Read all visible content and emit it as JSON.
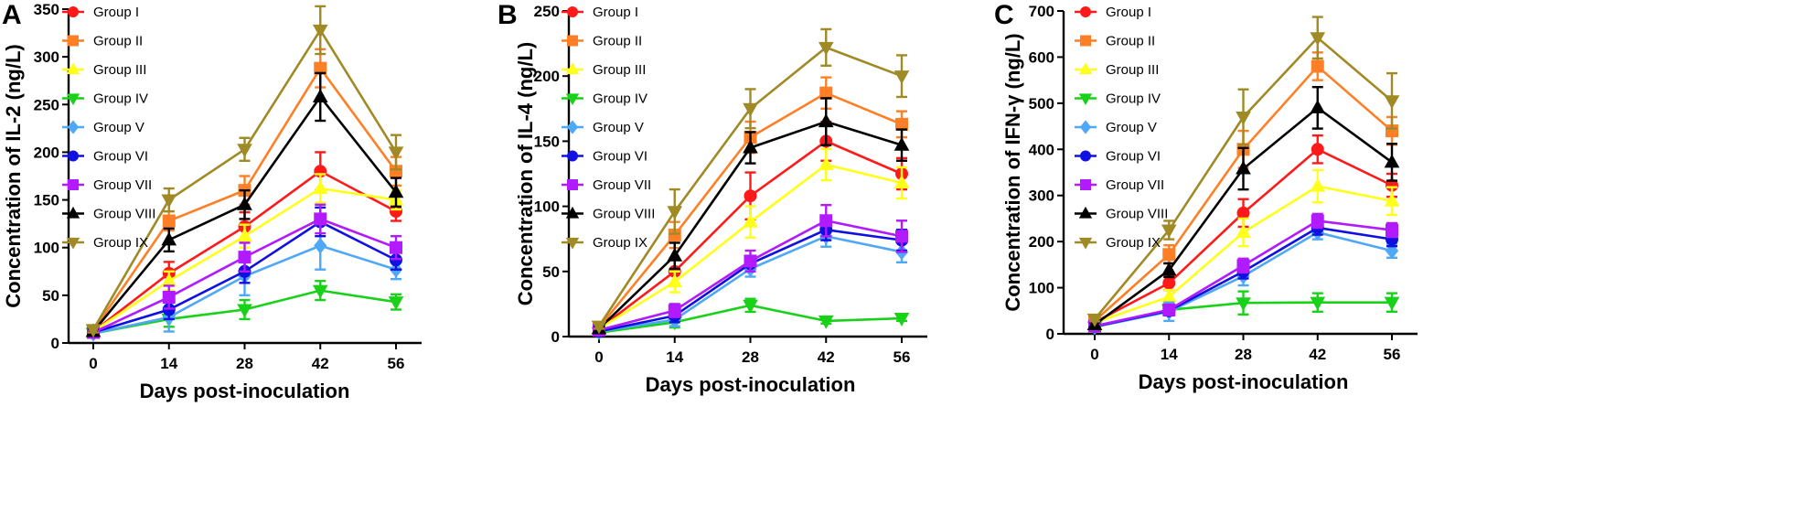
{
  "chart_data": [
    {
      "type": "line",
      "panel": "A",
      "xlabel": "Days post-inoculation",
      "ylabel": "Concentration of IL-2 (ng/L)",
      "x": [
        0,
        14,
        28,
        42,
        56
      ],
      "xticks": [
        0,
        14,
        28,
        42,
        56
      ],
      "ylim": [
        0,
        350
      ],
      "yticks": [
        0,
        50,
        100,
        150,
        200,
        250,
        300,
        350
      ],
      "series": [
        {
          "name": "Group I",
          "color": "#ff1a1a",
          "marker": "circle",
          "values": [
            12,
            73,
            122,
            180,
            138
          ],
          "errors": [
            3,
            12,
            15,
            20,
            10
          ]
        },
        {
          "name": "Group II",
          "color": "#ff7f27",
          "marker": "square",
          "values": [
            13,
            128,
            160,
            288,
            180
          ],
          "errors": [
            3,
            10,
            15,
            20,
            15
          ]
        },
        {
          "name": "Group III",
          "color": "#ffff1a",
          "marker": "triangle-up",
          "values": [
            12,
            65,
            112,
            162,
            150
          ],
          "errors": [
            3,
            10,
            12,
            15,
            10
          ]
        },
        {
          "name": "Group IV",
          "color": "#1ad11a",
          "marker": "triangle-down",
          "values": [
            10,
            25,
            35,
            55,
            43
          ],
          "errors": [
            3,
            8,
            10,
            10,
            8
          ]
        },
        {
          "name": "Group V",
          "color": "#4fa8f5",
          "marker": "diamond",
          "values": [
            10,
            27,
            70,
            102,
            77
          ],
          "errors": [
            3,
            15,
            20,
            25,
            10
          ]
        },
        {
          "name": "Group VI",
          "color": "#1010e0",
          "marker": "circle",
          "values": [
            11,
            35,
            75,
            127,
            87
          ],
          "errors": [
            3,
            10,
            12,
            15,
            10
          ]
        },
        {
          "name": "Group VII",
          "color": "#b21aff",
          "marker": "square",
          "values": [
            11,
            48,
            90,
            130,
            100
          ],
          "errors": [
            3,
            12,
            15,
            15,
            12
          ]
        },
        {
          "name": "Group VIII",
          "color": "#000000",
          "marker": "triangle-up",
          "values": [
            12,
            108,
            145,
            258,
            158
          ],
          "errors": [
            3,
            12,
            15,
            25,
            15
          ]
        },
        {
          "name": "Group IX",
          "color": "#a08a26",
          "marker": "triangle-down",
          "values": [
            14,
            150,
            203,
            328,
            200
          ],
          "errors": [
            3,
            12,
            12,
            25,
            18
          ]
        }
      ]
    },
    {
      "type": "line",
      "panel": "B",
      "xlabel": "Days post-inoculation",
      "ylabel": "Concentration of IL-4 (ng/L)",
      "x": [
        0,
        14,
        28,
        42,
        56
      ],
      "xticks": [
        0,
        14,
        28,
        42,
        56
      ],
      "ylim": [
        0,
        250
      ],
      "yticks": [
        0,
        50,
        100,
        150,
        200,
        250
      ],
      "series": [
        {
          "name": "Group I",
          "color": "#ff1a1a",
          "marker": "circle",
          "values": [
            6,
            50,
            108,
            150,
            125
          ],
          "errors": [
            2,
            10,
            18,
            15,
            12
          ]
        },
        {
          "name": "Group II",
          "color": "#ff7f27",
          "marker": "square",
          "values": [
            7,
            78,
            153,
            187,
            163
          ],
          "errors": [
            2,
            10,
            12,
            12,
            10
          ]
        },
        {
          "name": "Group III",
          "color": "#ffff1a",
          "marker": "triangle-up",
          "values": [
            6,
            42,
            88,
            132,
            118
          ],
          "errors": [
            2,
            8,
            12,
            12,
            12
          ]
        },
        {
          "name": "Group IV",
          "color": "#1ad11a",
          "marker": "triangle-down",
          "values": [
            3,
            11,
            24,
            12,
            14
          ],
          "errors": [
            1,
            4,
            5,
            2,
            2
          ]
        },
        {
          "name": "Group V",
          "color": "#4fa8f5",
          "marker": "diamond",
          "values": [
            4,
            13,
            52,
            77,
            65
          ],
          "errors": [
            1,
            5,
            6,
            8,
            8
          ]
        },
        {
          "name": "Group VI",
          "color": "#1010e0",
          "marker": "circle",
          "values": [
            4,
            16,
            56,
            82,
            74
          ],
          "errors": [
            1,
            5,
            6,
            8,
            8
          ]
        },
        {
          "name": "Group VII",
          "color": "#b21aff",
          "marker": "square",
          "values": [
            5,
            20,
            58,
            89,
            77
          ],
          "errors": [
            1,
            5,
            8,
            12,
            12
          ]
        },
        {
          "name": "Group VIII",
          "color": "#000000",
          "marker": "triangle-up",
          "values": [
            6,
            62,
            145,
            165,
            147
          ],
          "errors": [
            2,
            10,
            12,
            18,
            12
          ]
        },
        {
          "name": "Group IX",
          "color": "#a08a26",
          "marker": "triangle-down",
          "values": [
            8,
            96,
            175,
            222,
            200
          ],
          "errors": [
            2,
            17,
            15,
            14,
            16
          ]
        }
      ]
    },
    {
      "type": "line",
      "panel": "C",
      "xlabel": "Days post-inoculation",
      "ylabel": "Concentration of IFN-γ  (ng/L)",
      "x": [
        0,
        14,
        28,
        42,
        56
      ],
      "xticks": [
        0,
        14,
        28,
        42,
        56
      ],
      "ylim": [
        0,
        700
      ],
      "yticks": [
        0,
        100,
        200,
        300,
        400,
        500,
        600,
        700
      ],
      "series": [
        {
          "name": "Group I",
          "color": "#ff1a1a",
          "marker": "circle",
          "values": [
            25,
            110,
            262,
            400,
            322
          ],
          "errors": [
            5,
            15,
            30,
            30,
            25
          ]
        },
        {
          "name": "Group II",
          "color": "#ff7f27",
          "marker": "square",
          "values": [
            28,
            172,
            400,
            580,
            440
          ],
          "errors": [
            5,
            20,
            40,
            30,
            30
          ]
        },
        {
          "name": "Group III",
          "color": "#ffff1a",
          "marker": "triangle-up",
          "values": [
            24,
            80,
            220,
            320,
            288
          ],
          "errors": [
            5,
            15,
            30,
            35,
            30
          ]
        },
        {
          "name": "Group IV",
          "color": "#1ad11a",
          "marker": "triangle-down",
          "values": [
            15,
            52,
            67,
            68,
            68
          ],
          "errors": [
            3,
            10,
            25,
            20,
            20
          ]
        },
        {
          "name": "Group V",
          "color": "#4fa8f5",
          "marker": "diamond",
          "values": [
            15,
            48,
            125,
            220,
            180
          ],
          "errors": [
            3,
            20,
            20,
            15,
            15
          ]
        },
        {
          "name": "Group VI",
          "color": "#1010e0",
          "marker": "circle",
          "values": [
            16,
            50,
            135,
            230,
            205
          ],
          "errors": [
            3,
            10,
            15,
            15,
            15
          ]
        },
        {
          "name": "Group VII",
          "color": "#b21aff",
          "marker": "square",
          "values": [
            17,
            52,
            148,
            245,
            225
          ],
          "errors": [
            3,
            10,
            15,
            15,
            15
          ]
        },
        {
          "name": "Group VIII",
          "color": "#000000",
          "marker": "triangle-up",
          "values": [
            20,
            138,
            358,
            490,
            372
          ],
          "errors": [
            5,
            15,
            45,
            45,
            40
          ]
        },
        {
          "name": "Group IX",
          "color": "#a08a26",
          "marker": "triangle-down",
          "values": [
            32,
            225,
            470,
            642,
            505
          ],
          "errors": [
            5,
            20,
            60,
            45,
            60
          ]
        }
      ]
    }
  ]
}
